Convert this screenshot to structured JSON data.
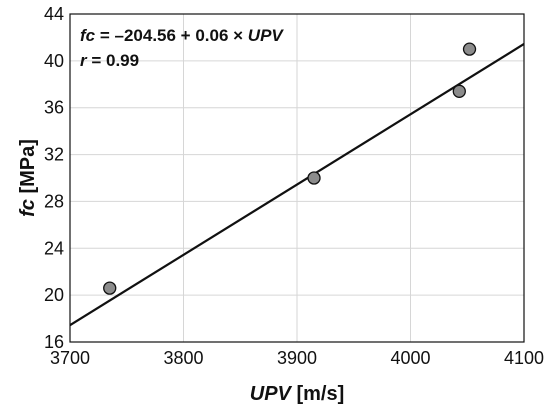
{
  "chart_data": {
    "type": "scatter",
    "xlabel_var": "UPV",
    "xlabel_unit": " [m/s]",
    "ylabel_var": "fc",
    "ylabel_unit": " [MPa]",
    "xlim": [
      3700,
      4100
    ],
    "ylim": [
      16,
      44
    ],
    "xticks": [
      3700,
      3800,
      3900,
      4000,
      4100
    ],
    "yticks": [
      16,
      20,
      24,
      28,
      32,
      36,
      40,
      44
    ],
    "grid": true,
    "points": [
      {
        "x": 3735,
        "y": 20.6
      },
      {
        "x": 3915,
        "y": 30.0
      },
      {
        "x": 4043,
        "y": 37.4
      },
      {
        "x": 4052,
        "y": 41.0
      }
    ],
    "fit": {
      "intercept": -204.56,
      "slope": 0.06
    },
    "equation": {
      "lhs": "fc",
      "middle": " = –204.56 + 0.06 × ",
      "rhs": "UPV"
    },
    "correlation": {
      "lhs": "r",
      "rhs": " = 0.99"
    }
  }
}
